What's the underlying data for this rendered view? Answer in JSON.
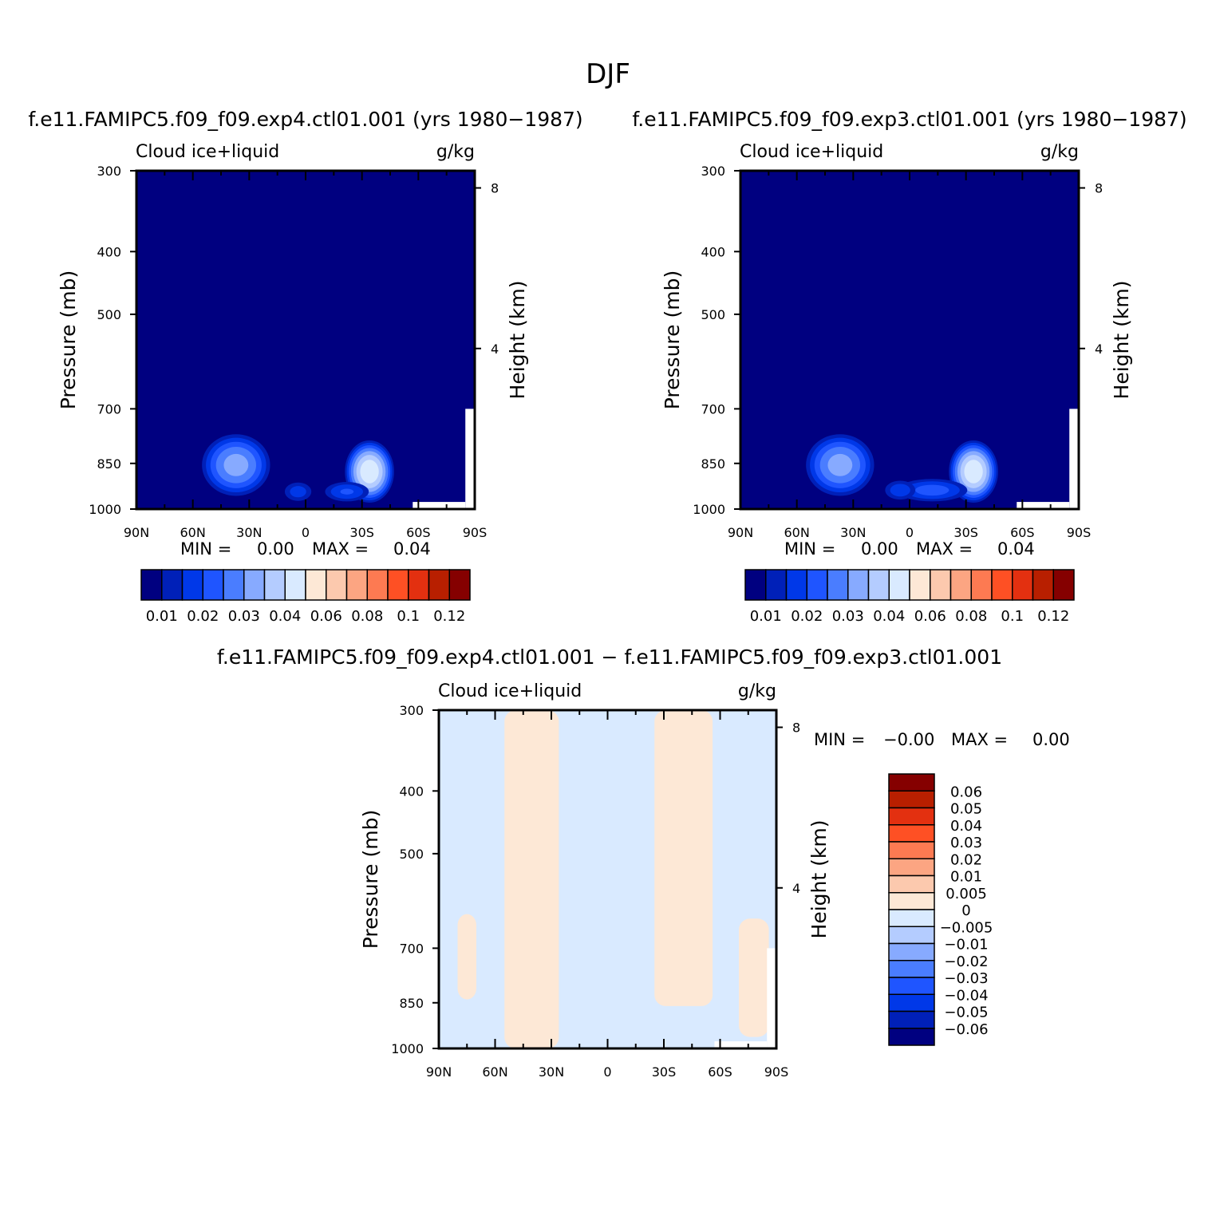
{
  "figure_title": "DJF",
  "chart_data": [
    {
      "type": "contour",
      "title": "f.e11.FAMIPC5.f09_f09.exp4.ctl01.001 (yrs 1980-1987)",
      "left_string": "Cloud ice+liquid",
      "right_string": "g/kg",
      "ylabel": "Pressure (mb)",
      "ylabel_right": "Height (km)",
      "x_ticks": [
        "90N",
        "60N",
        "30N",
        "0",
        "30S",
        "60S",
        "90S"
      ],
      "x_values": [
        90,
        60,
        30,
        0,
        -30,
        -60,
        -90
      ],
      "y_ticks": [
        "300",
        "400",
        "500",
        "700",
        "850",
        "1000"
      ],
      "y_values": [
        300,
        400,
        500,
        700,
        850,
        1000
      ],
      "ylim": [
        300,
        1000
      ],
      "height_ticks": [
        "8",
        "4"
      ],
      "height_values": [
        8,
        4
      ],
      "stats": {
        "min_label": "MIN =",
        "min": "0.00",
        "max_label": "MAX =",
        "max": "0.04"
      },
      "colorbar": {
        "orientation": "horizontal",
        "labels": [
          "0.01",
          "0.02",
          "0.03",
          "0.04",
          "0.06",
          "0.08",
          "0.1",
          "0.12"
        ],
        "colors": [
          "#000080",
          "#0020b8",
          "#0038e8",
          "#1f55ff",
          "#4a7dff",
          "#87aaff",
          "#b4ccff",
          "#d9eaff",
          "#fde8d6",
          "#fcc9ae",
          "#fca582",
          "#fd7a52",
          "#fe5024",
          "#e33010",
          "#b81f00",
          "#850000"
        ]
      },
      "blobs": [
        {
          "lat": 37,
          "p": 855,
          "lat_half_width": 20,
          "p_half_depth": 110,
          "peak": 0.028
        },
        {
          "lat": -34,
          "p": 875,
          "lat_half_width": 14,
          "p_half_depth": 110,
          "peak": 0.04
        },
        {
          "lat": -22,
          "p": 940,
          "lat_half_width": 14,
          "p_half_depth": 40,
          "peak": 0.016
        },
        {
          "lat": 4,
          "p": 940,
          "lat_half_width": 9,
          "p_half_depth": 40,
          "peak": 0.013
        }
      ]
    },
    {
      "type": "contour",
      "title": "f.e11.FAMIPC5.f09_f09.exp3.ctl01.001 (yrs 1980-1987)",
      "left_string": "Cloud ice+liquid",
      "right_string": "g/kg",
      "ylabel": "Pressure (mb)",
      "ylabel_right": "Height (km)",
      "x_ticks": [
        "90N",
        "60N",
        "30N",
        "0",
        "30S",
        "60S",
        "90S"
      ],
      "x_values": [
        90,
        60,
        30,
        0,
        -30,
        -60,
        -90
      ],
      "y_ticks": [
        "300",
        "400",
        "500",
        "700",
        "850",
        "1000"
      ],
      "y_values": [
        300,
        400,
        500,
        700,
        850,
        1000
      ],
      "ylim": [
        300,
        1000
      ],
      "height_ticks": [
        "8",
        "4"
      ],
      "height_values": [
        8,
        4
      ],
      "stats": {
        "min_label": "MIN =",
        "min": "0.00",
        "max_label": "MAX =",
        "max": "0.04"
      },
      "colorbar": {
        "orientation": "horizontal",
        "labels": [
          "0.01",
          "0.02",
          "0.03",
          "0.04",
          "0.06",
          "0.08",
          "0.1",
          "0.12"
        ],
        "colors": [
          "#000080",
          "#0020b8",
          "#0038e8",
          "#1f55ff",
          "#4a7dff",
          "#87aaff",
          "#b4ccff",
          "#d9eaff",
          "#fde8d6",
          "#fcc9ae",
          "#fca582",
          "#fd7a52",
          "#fe5024",
          "#e33010",
          "#b81f00",
          "#850000"
        ]
      },
      "blobs": [
        {
          "lat": 37,
          "p": 855,
          "lat_half_width": 20,
          "p_half_depth": 110,
          "peak": 0.028
        },
        {
          "lat": -34,
          "p": 875,
          "lat_half_width": 14,
          "p_half_depth": 110,
          "peak": 0.04
        },
        {
          "lat": -12,
          "p": 935,
          "lat_half_width": 22,
          "p_half_depth": 45,
          "peak": 0.018
        },
        {
          "lat": 5,
          "p": 935,
          "lat_half_width": 10,
          "p_half_depth": 40,
          "peak": 0.014
        }
      ]
    },
    {
      "type": "contour",
      "title": "f.e11.FAMIPC5.f09_f09.exp4.ctl01.001 - f.e11.FAMIPC5.f09_f09.exp3.ctl01.001",
      "left_string": "Cloud ice+liquid",
      "right_string": "g/kg",
      "ylabel": "Pressure (mb)",
      "ylabel_right": "Height (km)",
      "x_ticks": [
        "90N",
        "60N",
        "30N",
        "0",
        "30S",
        "60S",
        "90S"
      ],
      "x_values": [
        90,
        60,
        30,
        0,
        -30,
        -60,
        -90
      ],
      "y_ticks": [
        "300",
        "400",
        "500",
        "700",
        "850",
        "1000"
      ],
      "y_values": [
        300,
        400,
        500,
        700,
        850,
        1000
      ],
      "ylim": [
        300,
        1000
      ],
      "height_ticks": [
        "8",
        "4"
      ],
      "height_values": [
        8,
        4
      ],
      "stats": {
        "min_label": "MIN =",
        "min": "-0.00",
        "max_label": "MAX =",
        "max": "0.00"
      },
      "colorbar": {
        "orientation": "vertical",
        "labels": [
          "0.06",
          "0.05",
          "0.04",
          "0.03",
          "0.02",
          "0.01",
          "0.005",
          "0",
          "-0.005",
          "-0.01",
          "-0.02",
          "-0.03",
          "-0.04",
          "-0.05",
          "-0.06"
        ],
        "colors": [
          "#850000",
          "#b81f00",
          "#e33010",
          "#fe5024",
          "#fd7a52",
          "#fca582",
          "#fcc9ae",
          "#fde8d6",
          "#d9eaff",
          "#b4ccff",
          "#87aaff",
          "#4a7dff",
          "#1f55ff",
          "#0038e8",
          "#0020b8",
          "#000080"
        ]
      },
      "background_value": "-0.005 to 0",
      "positive_regions": [
        {
          "lat_from": 55,
          "lat_to": 26,
          "p_from": 300,
          "p_to": 1000,
          "value": "0 to 0.005"
        },
        {
          "lat_from": -25,
          "lat_to": -56,
          "p_from": 300,
          "p_to": 860,
          "value": "0 to 0.005"
        },
        {
          "lat_from": 80,
          "lat_to": 70,
          "p_from": 620,
          "p_to": 840,
          "value": "0 to 0.005"
        },
        {
          "lat_from": -70,
          "lat_to": -86,
          "p_from": 630,
          "p_to": 960,
          "value": "0 to 0.005"
        }
      ]
    }
  ]
}
